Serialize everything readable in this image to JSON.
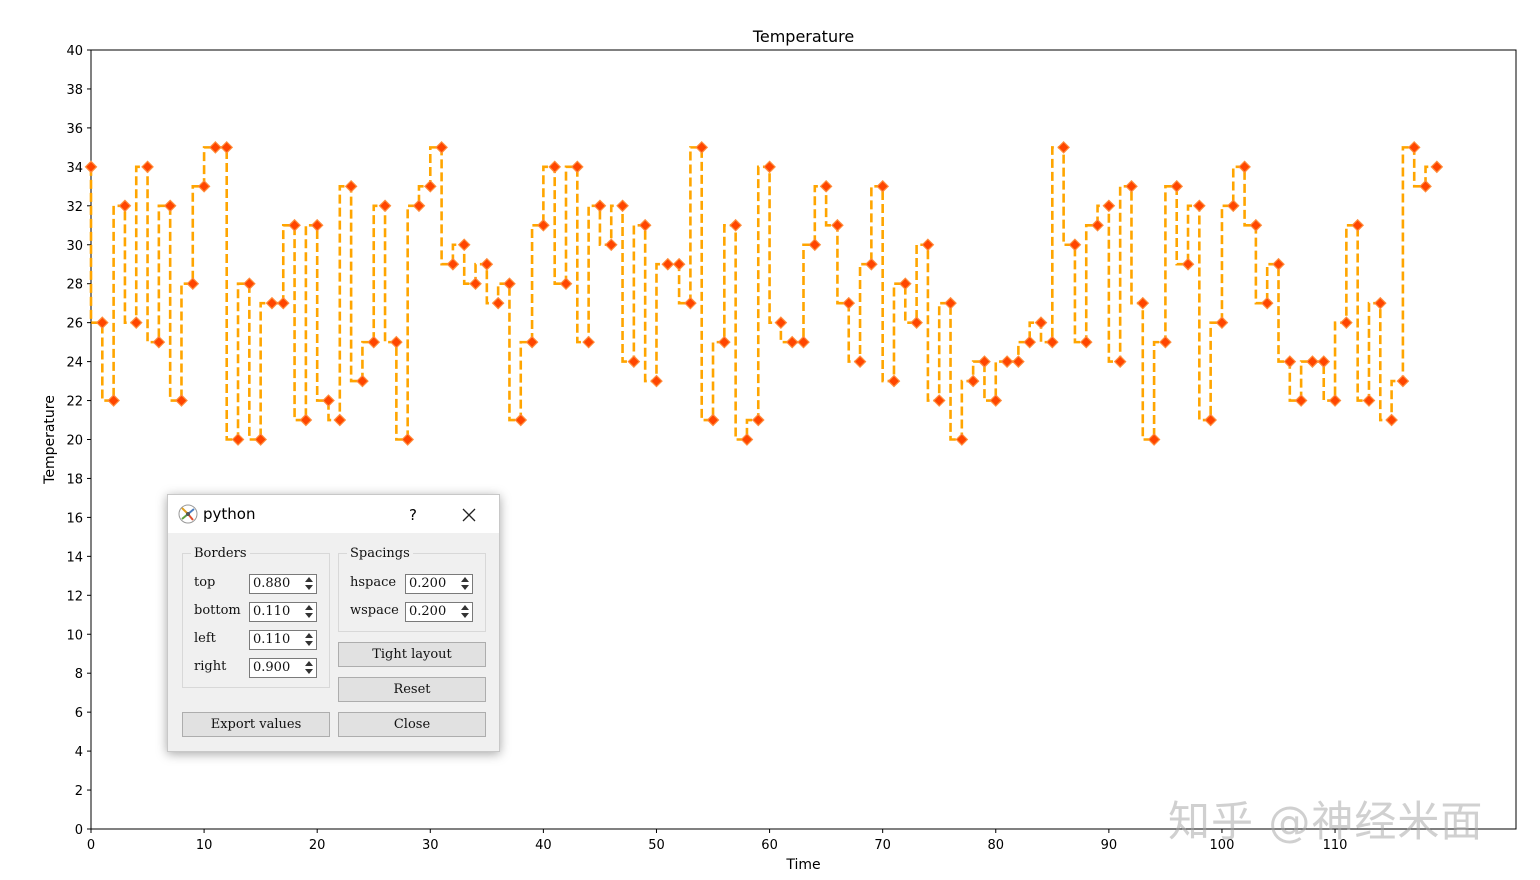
{
  "chart_data": {
    "type": "line",
    "title": "Temperature",
    "xlabel": "Time",
    "ylabel": "Temperature",
    "xlim": [
      0,
      126
    ],
    "ylim": [
      0,
      40
    ],
    "xticks": [
      0,
      10,
      20,
      30,
      40,
      50,
      60,
      70,
      80,
      90,
      100,
      110
    ],
    "yticks": [
      0,
      2,
      4,
      6,
      8,
      10,
      12,
      14,
      16,
      18,
      20,
      22,
      24,
      26,
      28,
      30,
      32,
      34,
      36,
      38,
      40
    ],
    "line_style": "dashed step",
    "line_color": "#ffa500",
    "marker": "diamond",
    "marker_color": "#ff4500",
    "grid": false,
    "series": [
      {
        "x": [
          0,
          1,
          2,
          3,
          4,
          5,
          6,
          7,
          8,
          9,
          10,
          11,
          12,
          13,
          14,
          15,
          16,
          17,
          18,
          19,
          20,
          21,
          22,
          23,
          24,
          25,
          26,
          27,
          28,
          29,
          30,
          31,
          32,
          33,
          34,
          35,
          36,
          37,
          38,
          39,
          40,
          41,
          42,
          43,
          44,
          45,
          46,
          47,
          48,
          49,
          50,
          51,
          52,
          53,
          54,
          55,
          56,
          57,
          58,
          59,
          60,
          61,
          62,
          63,
          64,
          65,
          66,
          67,
          68,
          69,
          70,
          71,
          72,
          73,
          74,
          75,
          76,
          77,
          78,
          79,
          80,
          81,
          82,
          83,
          84,
          85,
          86,
          87,
          88,
          89,
          90,
          91,
          92,
          93,
          94,
          95,
          96,
          97,
          98,
          99,
          100,
          101,
          102,
          103,
          104,
          105,
          106,
          107,
          108,
          109,
          110,
          111,
          112,
          113,
          114,
          115,
          116,
          117,
          118,
          119
        ],
        "values": [
          34,
          26,
          22,
          32,
          26,
          34,
          25,
          32,
          22,
          28,
          33,
          35,
          35,
          20,
          28,
          20,
          27,
          27,
          31,
          21,
          31,
          22,
          21,
          33,
          23,
          25,
          32,
          25,
          20,
          32,
          33,
          35,
          29,
          30,
          28,
          29,
          27,
          28,
          21,
          25,
          31,
          34,
          28,
          34,
          25,
          32,
          30,
          32,
          24,
          31,
          23,
          29,
          29,
          27,
          35,
          21,
          25,
          31,
          20,
          21,
          34,
          26,
          25,
          25,
          30,
          33,
          31,
          27,
          24,
          29,
          33,
          23,
          28,
          26,
          30,
          22,
          27,
          20,
          23,
          24,
          22,
          24,
          24,
          25,
          26,
          25,
          35,
          30,
          25,
          31,
          32,
          24,
          33,
          27,
          20,
          25,
          33,
          29,
          32,
          21,
          26,
          32,
          34,
          31,
          27,
          29,
          24,
          22,
          24,
          24,
          22,
          26,
          31,
          22,
          27,
          21,
          23,
          35,
          33,
          34
        ]
      }
    ]
  },
  "watermark": "知乎 @神经米面",
  "dialog": {
    "title": "python",
    "help": "?",
    "borders": {
      "title": "Borders",
      "rows": [
        {
          "label": "top",
          "value": "0.880"
        },
        {
          "label": "bottom",
          "value": "0.110"
        },
        {
          "label": "left",
          "value": "0.110"
        },
        {
          "label": "right",
          "value": "0.900"
        }
      ]
    },
    "spacings": {
      "title": "Spacings",
      "rows": [
        {
          "label": "hspace",
          "value": "0.200"
        },
        {
          "label": "wspace",
          "value": "0.200"
        }
      ]
    },
    "buttons": {
      "tight_layout": "Tight layout",
      "reset": "Reset",
      "export": "Export values",
      "close": "Close"
    }
  }
}
